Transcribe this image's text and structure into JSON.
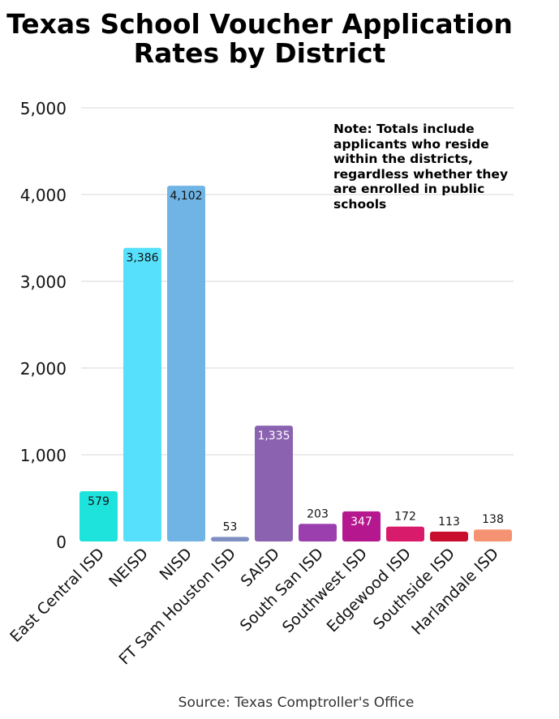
{
  "title_lines": [
    "Texas School Voucher Application",
    "Rates by District"
  ],
  "note_lines": [
    "Note: Totals include",
    "applicants who reside",
    "within the districts,",
    "regardless whether they",
    "are enrolled in public",
    "schools"
  ],
  "source": "Source: Texas Comptroller's Office",
  "chart_data": {
    "type": "bar",
    "title": "Texas School Voucher Application Rates by District",
    "xlabel": "",
    "ylabel": "",
    "ylim": [
      0,
      5000
    ],
    "yticks": [
      0,
      1000,
      2000,
      3000,
      4000,
      5000
    ],
    "ytick_labels": [
      "0",
      "1,000",
      "2,000",
      "3,000",
      "4,000",
      "5,000"
    ],
    "grid": true,
    "categories": [
      "East Central ISD",
      "NEISD",
      "NISD",
      "FT Sam Houston ISD",
      "SAISD",
      "South San ISD",
      "Southwest ISD",
      "Edgewood ISD",
      "Southside ISD",
      "Harlandale ISD"
    ],
    "values": [
      579,
      3386,
      4102,
      53,
      1335,
      203,
      347,
      172,
      113,
      138
    ],
    "value_labels": [
      "579",
      "3,386",
      "4,102",
      "53",
      "1,335",
      "203",
      "347",
      "172",
      "113",
      "138"
    ],
    "colors": [
      "#1ee3dc",
      "#56e0fb",
      "#70b4e6",
      "#7e8fc2",
      "#8a62b0",
      "#9b3fae",
      "#b5178e",
      "#d81b6a",
      "#c80d2e",
      "#f59272"
    ]
  }
}
